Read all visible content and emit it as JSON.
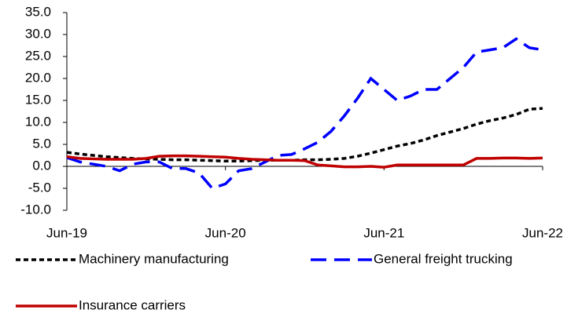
{
  "chart_data": {
    "type": "line",
    "categories": [
      "Jun-19",
      null,
      null,
      null,
      null,
      null,
      null,
      null,
      null,
      null,
      null,
      null,
      "Jun-20",
      null,
      null,
      null,
      null,
      null,
      null,
      null,
      null,
      null,
      null,
      null,
      "Jun-21",
      null,
      null,
      null,
      null,
      null,
      null,
      null,
      null,
      null,
      null,
      null,
      "Jun-22"
    ],
    "series": [
      {
        "name": "Machinery manufacturing",
        "color": "#000000",
        "values": [
          3.2,
          2.8,
          2.5,
          2.2,
          2.0,
          1.8,
          1.7,
          1.6,
          1.5,
          1.5,
          1.4,
          1.3,
          1.2,
          1.2,
          1.3,
          1.4,
          1.4,
          1.4,
          1.5,
          1.5,
          1.6,
          1.8,
          2.3,
          3.0,
          3.8,
          4.6,
          5.2,
          6.0,
          7.0,
          7.8,
          8.6,
          9.6,
          10.4,
          11.0,
          11.8,
          13.0,
          13.2
        ]
      },
      {
        "name": "General freight trucking",
        "color": "#0000ff",
        "values": [
          2.0,
          1.0,
          0.5,
          0.0,
          -1.0,
          0.5,
          1.0,
          1.0,
          -0.5,
          -0.5,
          -1.5,
          -5.0,
          -4.0,
          -1.0,
          -0.5,
          1.0,
          2.5,
          2.7,
          4.0,
          5.5,
          8.0,
          11.5,
          15.5,
          20.0,
          17.5,
          15.0,
          16.0,
          17.5,
          17.5,
          20.0,
          22.5,
          26.0,
          26.5,
          27.0,
          29.0,
          27.0,
          26.5
        ]
      },
      {
        "name": "Insurance carriers",
        "color": "#c00000",
        "values": [
          2.2,
          1.8,
          1.7,
          1.6,
          1.6,
          1.6,
          1.8,
          2.3,
          2.4,
          2.4,
          2.3,
          2.2,
          2.1,
          1.8,
          1.6,
          1.5,
          1.4,
          1.4,
          1.3,
          0.3,
          0.1,
          -0.1,
          -0.1,
          0.0,
          -0.2,
          0.3,
          0.3,
          0.3,
          0.3,
          0.3,
          0.3,
          1.8,
          1.8,
          1.9,
          1.9,
          1.8,
          1.9
        ]
      }
    ],
    "ylim": [
      -10,
      35
    ],
    "yticks": [
      {
        "value": -10,
        "label": "-10.0"
      },
      {
        "value": -5,
        "label": "-5.0"
      },
      {
        "value": 0,
        "label": "0.0"
      },
      {
        "value": 5,
        "label": "5.0"
      },
      {
        "value": 10,
        "label": "10.0"
      },
      {
        "value": 15,
        "label": "15.0"
      },
      {
        "value": 20,
        "label": "20.0"
      },
      {
        "value": 25,
        "label": "25.0"
      },
      {
        "value": 30,
        "label": "30.0"
      },
      {
        "value": 35,
        "label": "35.0"
      }
    ],
    "grid": false
  }
}
